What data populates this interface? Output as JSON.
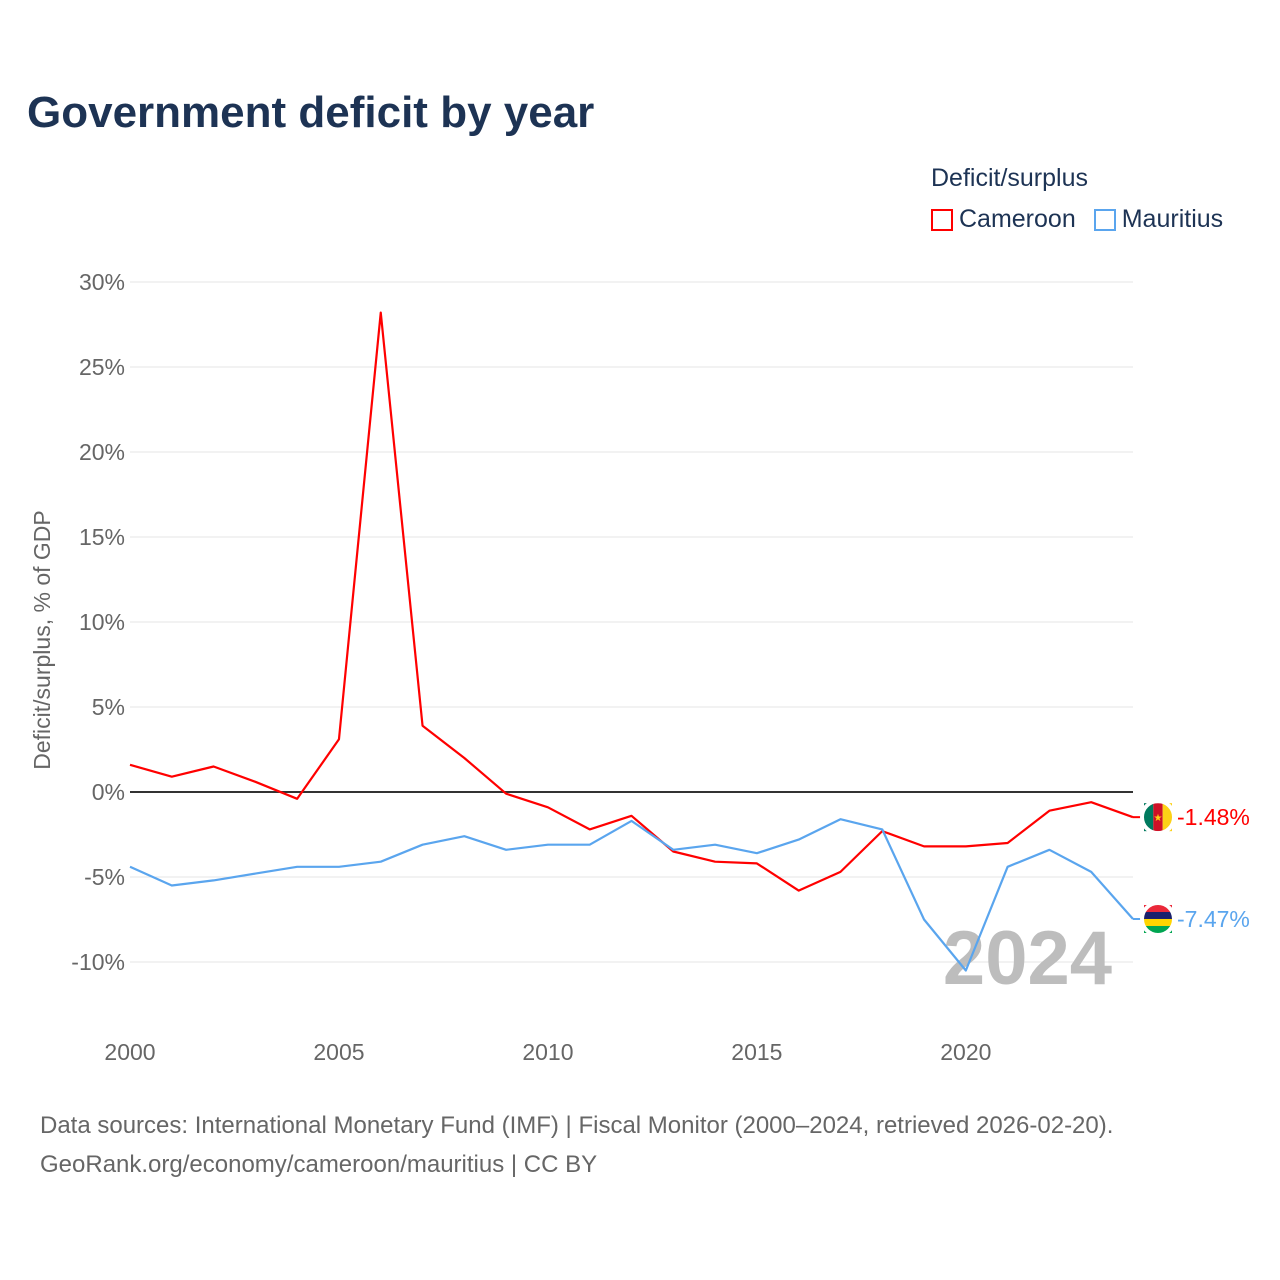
{
  "title": "Government deficit by year",
  "legend": {
    "title": "Deficit/surplus",
    "items": [
      {
        "label": "Cameroon",
        "color": "#ff0000"
      },
      {
        "label": "Mauritius",
        "color": "#5aa5ee"
      }
    ]
  },
  "source": {
    "line1": "Data sources: International Monetary Fund (IMF) | Fiscal Monitor (2000–2024, retrieved 2026-02-20).",
    "line2": "GeoRank.org/economy/cameroon/mauritius | CC BY"
  },
  "chart_data": {
    "type": "line",
    "title": "Government deficit by year",
    "ylabel": "Deficit/surplus, % of GDP",
    "xlabel": "",
    "xlim": [
      2000,
      2024
    ],
    "ylim": [
      -13,
      30
    ],
    "yticks": [
      30,
      25,
      20,
      15,
      10,
      5,
      0,
      -5,
      -10
    ],
    "ytick_labels": [
      "30%",
      "25%",
      "20%",
      "15%",
      "10%",
      "5%",
      "0%",
      "-5%",
      "-10%"
    ],
    "xticks": [
      2000,
      2005,
      2010,
      2015,
      2020
    ],
    "xtick_labels": [
      "2000",
      "2005",
      "2010",
      "2015",
      "2020"
    ],
    "year_watermark": "2024",
    "x": [
      2000,
      2001,
      2002,
      2003,
      2004,
      2005,
      2006,
      2007,
      2008,
      2009,
      2010,
      2011,
      2012,
      2013,
      2014,
      2015,
      2016,
      2017,
      2018,
      2019,
      2020,
      2021,
      2022,
      2023,
      2024
    ],
    "series": [
      {
        "name": "Cameroon",
        "color": "#ff0000",
        "end_label": "-1.48%",
        "values": [
          1.6,
          0.9,
          1.5,
          0.6,
          -0.4,
          3.1,
          28.2,
          3.9,
          2.0,
          -0.1,
          -0.9,
          -2.2,
          -1.4,
          -3.5,
          -4.1,
          -4.2,
          -5.8,
          -4.7,
          -2.3,
          -3.2,
          -3.2,
          -3.0,
          -1.1,
          -0.6,
          -1.48
        ]
      },
      {
        "name": "Mauritius",
        "color": "#5aa5ee",
        "end_label": "-7.47%",
        "values": [
          -4.4,
          -5.5,
          -5.2,
          -4.8,
          -4.4,
          -4.4,
          -4.1,
          -3.1,
          -2.6,
          -3.4,
          -3.1,
          -3.1,
          -1.7,
          -3.4,
          -3.1,
          -3.6,
          -2.8,
          -1.6,
          -2.2,
          -7.5,
          -10.5,
          -4.4,
          -3.4,
          -4.7,
          -7.47
        ]
      }
    ]
  }
}
